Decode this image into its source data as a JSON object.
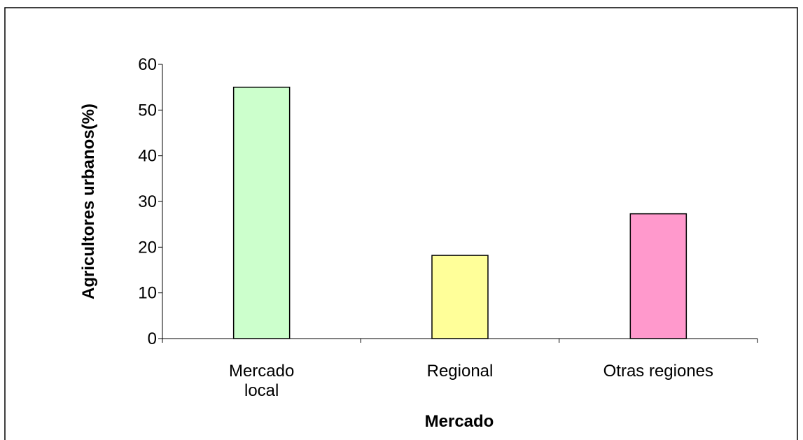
{
  "chart_data": {
    "type": "bar",
    "title": "",
    "categories": [
      [
        "Mercado",
        "local"
      ],
      [
        "Regional"
      ],
      [
        "Otras regiones"
      ]
    ],
    "values": [
      55,
      18.2,
      27.3
    ],
    "colors": [
      "#ccffcc",
      "#ffff99",
      "#ff99cc"
    ],
    "xlabel": "Mercado",
    "ylabel": "Agricultores urbanos(%)",
    "ylim": [
      0,
      60
    ],
    "yticks": [
      0,
      10,
      20,
      30,
      40,
      50,
      60
    ],
    "grid": false,
    "legend": "none"
  }
}
